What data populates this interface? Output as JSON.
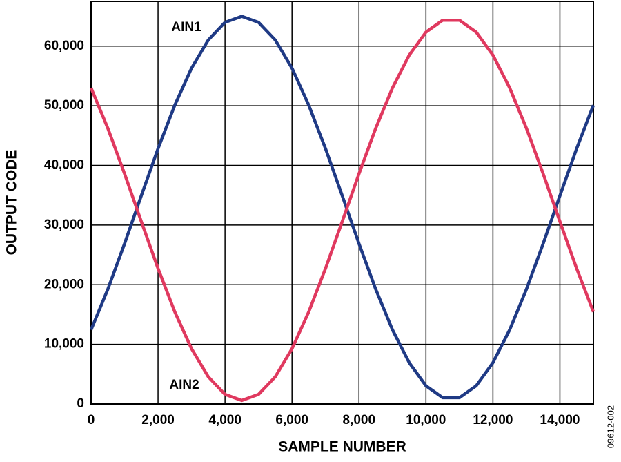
{
  "chart_data": {
    "type": "line",
    "x_label": "SAMPLE NUMBER",
    "y_label": "OUTPUT CODE",
    "figure_id": "09612-002",
    "x": [
      0,
      500,
      1000,
      1500,
      2000,
      2500,
      3000,
      3500,
      4000,
      4500,
      5000,
      5500,
      6000,
      6500,
      7000,
      7500,
      8000,
      8500,
      9000,
      9500,
      10000,
      10500,
      11000,
      11500,
      12000,
      12500,
      13000,
      13500,
      14000,
      14500,
      15000
    ],
    "series": [
      {
        "name": "AIN1",
        "color": "#1f3a85",
        "values": [
          12440,
          19230,
          26880,
          34920,
          42820,
          50100,
          56300,
          61030,
          63990,
          65000,
          63990,
          61030,
          56300,
          50100,
          42820,
          34920,
          26880,
          19230,
          12440,
          6930,
          3050,
          1050,
          1050,
          3050,
          6930,
          12440,
          19230,
          26880,
          34920,
          42820,
          50100
        ]
      },
      {
        "name": "AIN2",
        "color": "#e0395f",
        "values": [
          53000,
          46230,
          38600,
          30590,
          22710,
          15450,
          9270,
          4560,
          1600,
          600,
          1600,
          4560,
          9270,
          15450,
          22710,
          30590,
          38600,
          46230,
          53000,
          58490,
          62350,
          64350,
          64350,
          62350,
          58490,
          53000,
          46230,
          38600,
          30590,
          22710,
          15450
        ]
      }
    ],
    "xlim": [
      0,
      15000
    ],
    "ylim": [
      0,
      67500
    ],
    "xticks": [
      0,
      {
        "value": 2000,
        "label": "2,000"
      },
      {
        "value": 4000,
        "label": "4,000"
      },
      {
        "value": 6000,
        "label": "6,000"
      },
      {
        "value": 8000,
        "label": "8,000"
      },
      {
        "value": 10000,
        "label": "10,000"
      },
      {
        "value": 12000,
        "label": "12,000"
      },
      {
        "value": 14000,
        "label": "14,000"
      }
    ],
    "yticks": [
      0,
      {
        "value": 10000,
        "label": "10,000"
      },
      {
        "value": 20000,
        "label": "20,000"
      },
      {
        "value": 30000,
        "label": "30,000"
      },
      {
        "value": 40000,
        "label": "40,000"
      },
      {
        "value": 50000,
        "label": "50,000"
      },
      {
        "value": 60000,
        "label": "60,000"
      }
    ],
    "grid": true
  }
}
